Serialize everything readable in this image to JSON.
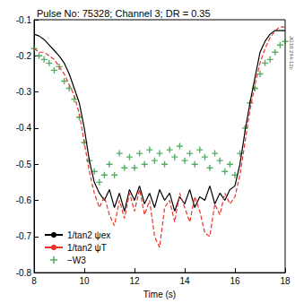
{
  "chart_data": {
    "type": "line",
    "title": "Pulse No: 75328; Channel 3; DR = 0.35",
    "x_label": "Time (s)",
    "annotation": "JG10.244-12c",
    "x": [
      8.0,
      8.2,
      8.4,
      8.6,
      8.8,
      9.0,
      9.2,
      9.4,
      9.6,
      9.8,
      10.0,
      10.2,
      10.4,
      10.6,
      10.8,
      11.0,
      11.2,
      11.4,
      11.6,
      11.8,
      12.0,
      12.2,
      12.4,
      12.6,
      12.8,
      13.0,
      13.2,
      13.4,
      13.6,
      13.8,
      14.0,
      14.2,
      14.4,
      14.6,
      14.8,
      15.0,
      15.2,
      15.4,
      15.6,
      15.8,
      16.0,
      16.2,
      16.4,
      16.6,
      16.8,
      17.0,
      17.2,
      17.4,
      17.6,
      17.8,
      18.0
    ],
    "series": [
      {
        "name": "1/tan2 ψex",
        "type": "line",
        "color": "#000000",
        "line_style": "solid",
        "values": [
          -0.14,
          -0.145,
          -0.155,
          -0.17,
          -0.185,
          -0.2,
          -0.22,
          -0.25,
          -0.29,
          -0.33,
          -0.4,
          -0.49,
          -0.55,
          -0.58,
          -0.6,
          -0.57,
          -0.62,
          -0.58,
          -0.63,
          -0.57,
          -0.6,
          -0.56,
          -0.61,
          -0.58,
          -0.62,
          -0.57,
          -0.6,
          -0.58,
          -0.63,
          -0.59,
          -0.61,
          -0.57,
          -0.62,
          -0.59,
          -0.6,
          -0.56,
          -0.61,
          -0.58,
          -0.6,
          -0.57,
          -0.56,
          -0.5,
          -0.41,
          -0.33,
          -0.26,
          -0.19,
          -0.16,
          -0.14,
          -0.13,
          -0.13,
          -0.13
        ]
      },
      {
        "name": "1/tan2 ψT",
        "type": "line",
        "color": "#e8332a",
        "line_style": "dashed",
        "values": [
          -0.18,
          -0.19,
          -0.19,
          -0.2,
          -0.21,
          -0.23,
          -0.25,
          -0.28,
          -0.31,
          -0.36,
          -0.44,
          -0.52,
          -0.58,
          -0.62,
          -0.59,
          -0.64,
          -0.67,
          -0.6,
          -0.65,
          -0.58,
          -0.63,
          -0.57,
          -0.64,
          -0.6,
          -0.7,
          -0.73,
          -0.62,
          -0.6,
          -0.66,
          -0.58,
          -0.62,
          -0.66,
          -0.59,
          -0.63,
          -0.69,
          -0.7,
          -0.61,
          -0.64,
          -0.58,
          -0.61,
          -0.59,
          -0.53,
          -0.44,
          -0.35,
          -0.28,
          -0.22,
          -0.18,
          -0.15,
          -0.13,
          -0.12,
          -0.12
        ]
      },
      {
        "name": "−W3",
        "type": "scatter",
        "color": "#2a9a3c",
        "marker": "plus",
        "values": [
          -0.18,
          -0.2,
          -0.21,
          -0.22,
          -0.24,
          -0.23,
          -0.27,
          -0.29,
          -0.32,
          -0.37,
          -0.44,
          -0.49,
          -0.52,
          -0.55,
          -0.53,
          -0.5,
          -0.53,
          -0.47,
          -0.51,
          -0.48,
          -0.51,
          -0.47,
          -0.5,
          -0.46,
          -0.49,
          -0.47,
          -0.5,
          -0.46,
          -0.48,
          -0.45,
          -0.49,
          -0.47,
          -0.5,
          -0.46,
          -0.48,
          -0.51,
          -0.47,
          -0.49,
          -0.52,
          -0.5,
          -0.53,
          -0.47,
          -0.4,
          -0.33,
          -0.29,
          -0.25,
          -0.22,
          -0.21,
          -0.19,
          -0.17,
          -0.16
        ]
      }
    ],
    "xlim": [
      8,
      18
    ],
    "xticks": [
      8,
      10,
      12,
      14,
      16,
      18
    ],
    "ylim": [
      -0.8,
      -0.1
    ],
    "yticks": [
      -0.8,
      -0.7,
      -0.6,
      -0.5,
      -0.4,
      -0.3,
      -0.2,
      -0.1
    ],
    "grid": false,
    "legend": "lower left"
  }
}
